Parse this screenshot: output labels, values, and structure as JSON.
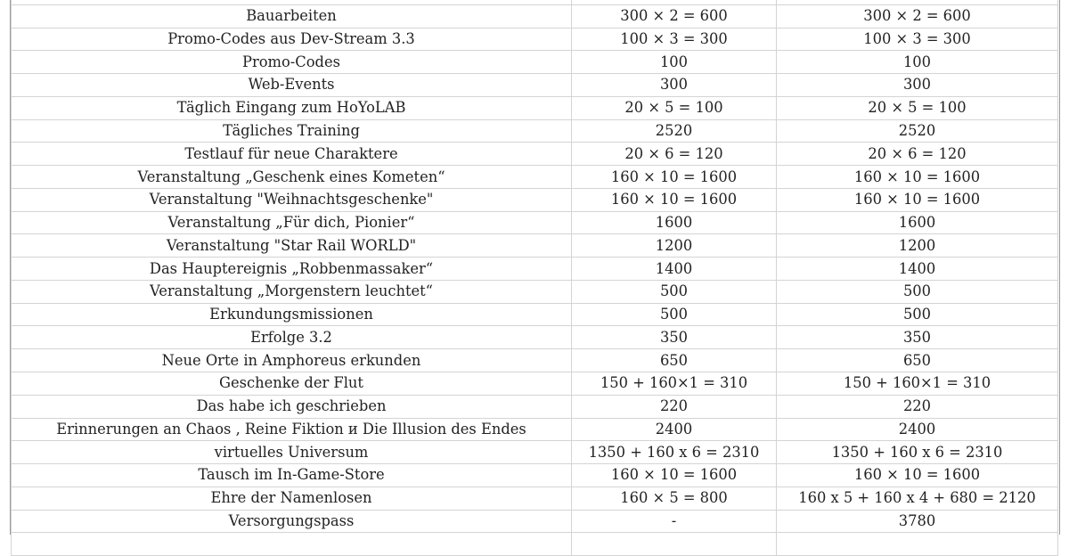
{
  "table": {
    "rows": [
      {
        "source": "Bauarbeiten",
        "col2": "300 × 2 = 600",
        "col3": "300 × 2 = 600"
      },
      {
        "source": "Promo-Codes aus Dev-Stream 3.3",
        "col2": "100 × 3 = 300",
        "col3": "100 × 3 = 300"
      },
      {
        "source": "Promo-Codes",
        "col2": "100",
        "col3": "100"
      },
      {
        "source": "Web-Events",
        "col2": "300",
        "col3": "300"
      },
      {
        "source": "Täglich Eingang zum HoYoLAB",
        "col2": "20 × 5 = 100",
        "col3": "20 × 5 = 100"
      },
      {
        "source": "Tägliches Training",
        "col2": "2520",
        "col3": "2520"
      },
      {
        "source": "Testlauf für neue Charaktere",
        "col2": "20 × 6 = 120",
        "col3": "20 × 6 = 120"
      },
      {
        "source": "Veranstaltung „Geschenk eines Kometen“",
        "col2": "160 × 10 = 1600",
        "col3": "160 × 10 = 1600"
      },
      {
        "source": "Veranstaltung \"Weihnachtsgeschenke\"",
        "col2": "160 × 10 = 1600",
        "col3": "160 × 10 = 1600"
      },
      {
        "source": "Veranstaltung „Für dich, Pionier“",
        "col2": "1600",
        "col3": "1600"
      },
      {
        "source": "Veranstaltung \"Star Rail WORLD\"",
        "col2": "1200",
        "col3": "1200"
      },
      {
        "source": "Das Hauptereignis „Robbenmassaker“",
        "col2": "1400",
        "col3": "1400"
      },
      {
        "source": "Veranstaltung „Morgenstern leuchtet“",
        "col2": "500",
        "col3": "500"
      },
      {
        "source": "Erkundungsmissionen",
        "col2": "500",
        "col3": "500"
      },
      {
        "source": "Erfolge 3.2",
        "col2": "350",
        "col3": "350"
      },
      {
        "source": "Neue Orte in Amphoreus erkunden",
        "col2": "650",
        "col3": "650"
      },
      {
        "source": "Geschenke der Flut",
        "col2": "150 + 160×1 = 310",
        "col3": "150 + 160×1 = 310"
      },
      {
        "source": "Das habe ich geschrieben",
        "col2": "220",
        "col3": "220"
      },
      {
        "source": "Erinnerungen an Chaos , Reine Fiktion и Die Illusion des Endes",
        "col2": "2400",
        "col3": "2400"
      },
      {
        "source": "virtuelles Universum",
        "col2": "1350 + 160 x 6 = 2310",
        "col3": "1350 + 160 x 6 = 2310"
      },
      {
        "source": "Tausch im In-Game-Store",
        "col2": "160 × 10 = 1600",
        "col3": "160 × 10 = 1600"
      },
      {
        "source": "Ehre der Namenlosen",
        "col2": "160 × 5 = 800",
        "col3": "160 x 5 + 160 x 4 + 680 = 2120"
      },
      {
        "source": "Versorgungspass",
        "col2": "-",
        "col3": "3780"
      }
    ]
  }
}
